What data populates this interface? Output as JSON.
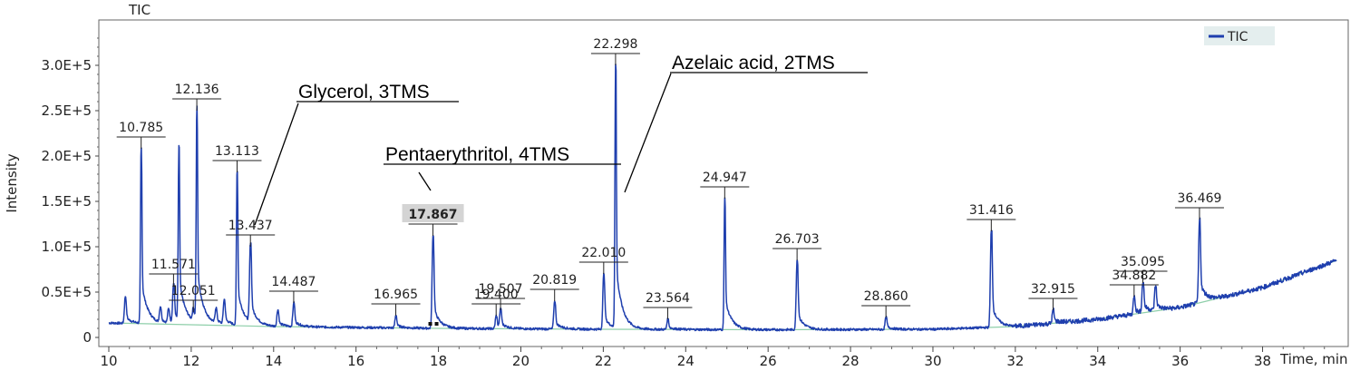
{
  "chart_data": {
    "type": "line",
    "title": "TIC",
    "xlabel": "Time, min",
    "ylabel": "Intensity",
    "xlim": [
      10,
      40
    ],
    "ylim": [
      0,
      340000
    ],
    "x_ticks": [
      10,
      12,
      14,
      16,
      18,
      20,
      22,
      24,
      26,
      28,
      30,
      32,
      34,
      36,
      38
    ],
    "y_ticks": [
      {
        "value": 0,
        "label": "0"
      },
      {
        "value": 50000,
        "label": "0.5E+5"
      },
      {
        "value": 100000,
        "label": "1.0E+5"
      },
      {
        "value": 150000,
        "label": "1.5E+5"
      },
      {
        "value": 200000,
        "label": "2.0E+5"
      },
      {
        "value": 250000,
        "label": "2.5E+5"
      },
      {
        "value": 300000,
        "label": "3.0E+5"
      }
    ],
    "legend": {
      "position": "top-right",
      "entries": [
        "TIC"
      ]
    },
    "colors": {
      "series": "#1f3fae",
      "baseline": "#8fcfaa",
      "frame": "#666666",
      "highlight": "#d4d4d4"
    },
    "baseline_points": [
      [
        10,
        16000
      ],
      [
        14,
        12000
      ],
      [
        18,
        10000
      ],
      [
        22,
        9000
      ],
      [
        26,
        8500
      ],
      [
        30,
        9000
      ],
      [
        32,
        12000
      ],
      [
        34,
        20000
      ],
      [
        36,
        33000
      ],
      [
        38,
        55000
      ],
      [
        39.8,
        85000
      ]
    ],
    "peaks": [
      {
        "time": 10.4,
        "intensity": 45000,
        "label": ""
      },
      {
        "time": 10.785,
        "intensity": 208000,
        "label": "10.785"
      },
      {
        "time": 11.25,
        "intensity": 32000,
        "label": ""
      },
      {
        "time": 11.45,
        "intensity": 30000,
        "label": ""
      },
      {
        "time": 11.571,
        "intensity": 57000,
        "label": "11.571"
      },
      {
        "time": 11.7,
        "intensity": 205000,
        "label": ""
      },
      {
        "time": 12.051,
        "intensity": 28000,
        "label": "12.051"
      },
      {
        "time": 12.136,
        "intensity": 250000,
        "label": "12.136"
      },
      {
        "time": 12.6,
        "intensity": 30000,
        "label": ""
      },
      {
        "time": 12.8,
        "intensity": 40000,
        "label": ""
      },
      {
        "time": 13.113,
        "intensity": 182000,
        "label": "13.113"
      },
      {
        "time": 13.437,
        "intensity": 100000,
        "label": "13.437"
      },
      {
        "time": 14.1,
        "intensity": 30000,
        "label": ""
      },
      {
        "time": 14.487,
        "intensity": 38000,
        "label": "14.487"
      },
      {
        "time": 16.965,
        "intensity": 24000,
        "label": "16.965"
      },
      {
        "time": 17.867,
        "intensity": 112000,
        "label": "17.867",
        "highlight": true
      },
      {
        "time": 19.4,
        "intensity": 24000,
        "label": "19.400"
      },
      {
        "time": 19.507,
        "intensity": 30000,
        "label": "19.507"
      },
      {
        "time": 20.819,
        "intensity": 40000,
        "label": "20.819"
      },
      {
        "time": 22.01,
        "intensity": 70000,
        "label": "22.010"
      },
      {
        "time": 22.298,
        "intensity": 300000,
        "label": "22.298"
      },
      {
        "time": 23.564,
        "intensity": 20000,
        "label": "23.564"
      },
      {
        "time": 24.947,
        "intensity": 153000,
        "label": "24.947"
      },
      {
        "time": 26.703,
        "intensity": 85000,
        "label": "26.703"
      },
      {
        "time": 28.86,
        "intensity": 22000,
        "label": "28.860"
      },
      {
        "time": 31.416,
        "intensity": 117000,
        "label": "31.416"
      },
      {
        "time": 32.915,
        "intensity": 30000,
        "label": "32.915"
      },
      {
        "time": 34.882,
        "intensity": 45000,
        "label": "34.882"
      },
      {
        "time": 35.095,
        "intensity": 60000,
        "label": "35.095"
      },
      {
        "time": 35.4,
        "intensity": 56000,
        "label": ""
      },
      {
        "time": 36.469,
        "intensity": 130000,
        "label": "36.469"
      }
    ],
    "annotations": [
      {
        "text": "Glycerol, 3TMS",
        "peak_time": 13.437
      },
      {
        "text": "Pentaerythritol, 4TMS",
        "peak_time": 17.867
      },
      {
        "text": "Azelaic acid, 2TMS",
        "peak_time": 22.298
      }
    ]
  }
}
